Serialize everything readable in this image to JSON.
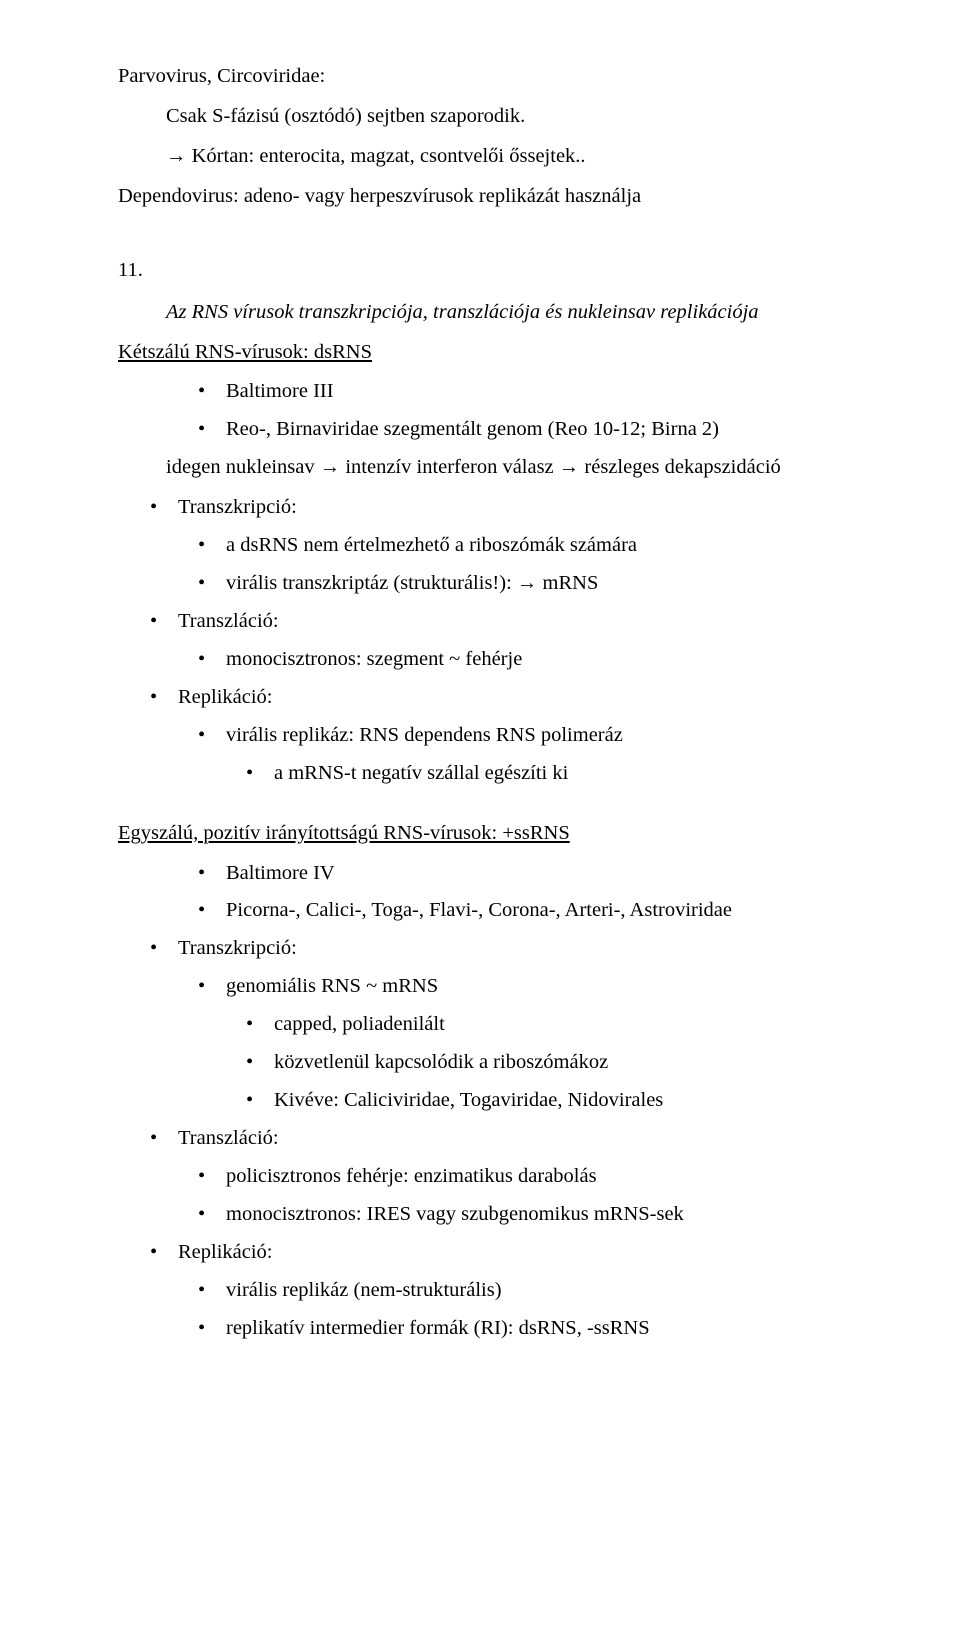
{
  "top": {
    "line1": "Parvovirus, Circoviridae:",
    "line2": "Csak S-fázisú (osztódó) sejtben szaporodik.",
    "line3": "→ Kórtan: enterocita, magzat, csontvelői őssejtek..",
    "line4": "Dependovirus: adeno- vagy herpeszvírusok replikázát használja"
  },
  "section_number": "11.",
  "section_title": "Az RNS vírusok transzkripciója, transzlációja és nukleinsav replikációja",
  "dsRNS": {
    "heading": "Kétszálú RNS-vírusok: dsRNS",
    "b1": "Baltimore III",
    "b2": "Reo-, Birnaviridae szegmentált genom (Reo 10-12; Birna 2)",
    "after_b2": "idegen nukleinsav → intenzív interferon válasz → részleges dekapszidáció",
    "transz": "Transzkripció:",
    "t1": "a dsRNS nem értelmezhető a riboszómák számára",
    "t2": "virális transzkriptáz (strukturális!):   → mRNS",
    "translacio": "Transzláció:",
    "tr1": "monocisztronos: szegment  ~ fehérje",
    "replikacio": "Replikáció:",
    "r1": "virális replikáz: RNS dependens RNS polimeráz",
    "r2": "a mRNS-t negatív szállal egészíti ki"
  },
  "ssRNS": {
    "heading": "Egyszálú, pozitív irányítottságú RNS-vírusok: +ssRNS",
    "b1": "Baltimore IV",
    "b2": "Picorna-, Calici-, Toga-, Flavi-, Corona-, Arteri-, Astroviridae",
    "transz": "Transzkripció:",
    "t1": "genomiális RNS ~ mRNS",
    "t1a": "capped, poliadenilált",
    "t1b": "közvetlenül kapcsolódik a riboszómákoz",
    "t1c": "Kivéve: Caliciviridae, Togaviridae, Nidovirales",
    "translacio": "Transzláció:",
    "tr1": "policisztronos fehérje: enzimatikus darabolás",
    "tr2": "monocisztronos: IRES vagy szubgenomikus mRNS-sek",
    "replikacio": "Replikáció:",
    "r1": "virális replikáz (nem-strukturális)",
    "r2": "replikatív intermedier formák (RI): dsRNS, -ssRNS"
  }
}
